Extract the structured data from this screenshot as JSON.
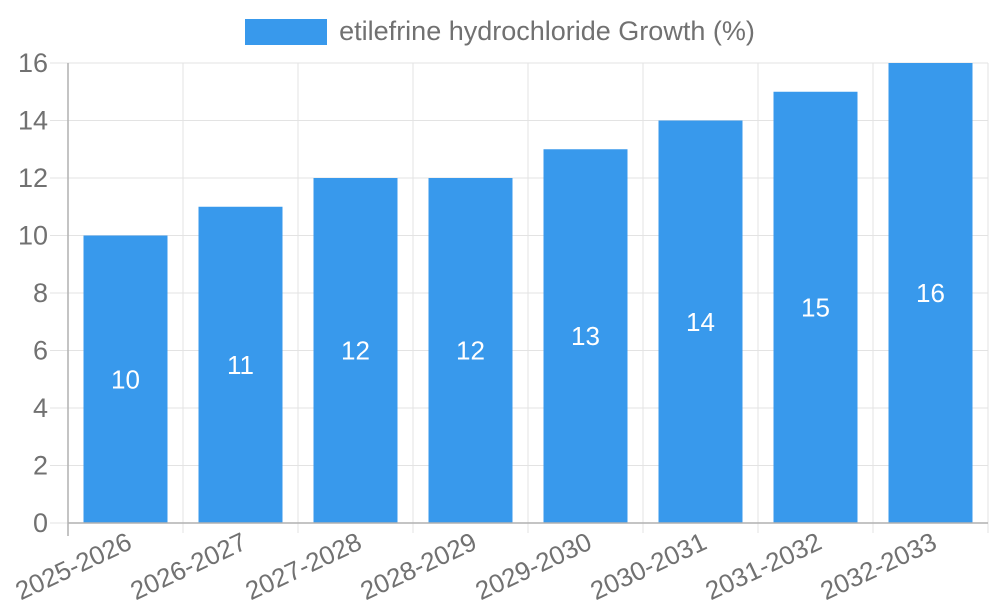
{
  "page": {
    "background_color": "#ffffff"
  },
  "chart_data": {
    "type": "bar",
    "title": "",
    "categories": [
      "2025-2026",
      "2026-2027",
      "2027-2028",
      "2028-2029",
      "2029-2030",
      "2030-2031",
      "2031-2032",
      "2032-2033"
    ],
    "series": [
      {
        "name": "etilefrine hydrochloride Growth (%)",
        "values": [
          10,
          11,
          12,
          12,
          13,
          14,
          15,
          16
        ]
      }
    ],
    "value_labels_shown": true,
    "xlabel": "",
    "ylabel": "",
    "ylim": [
      0,
      16
    ],
    "ytick_step": 2,
    "yticks": [
      0,
      2,
      4,
      6,
      8,
      10,
      12,
      14,
      16
    ],
    "grid": true,
    "legend_position": "top",
    "x_label_rotation_deg": -25,
    "bar_color": "#3899ec",
    "value_label_color": "#ffffff",
    "axis_text_color": "#717171",
    "grid_color": "#e3e3e3",
    "axis_line_color": "#b1b1b1"
  }
}
